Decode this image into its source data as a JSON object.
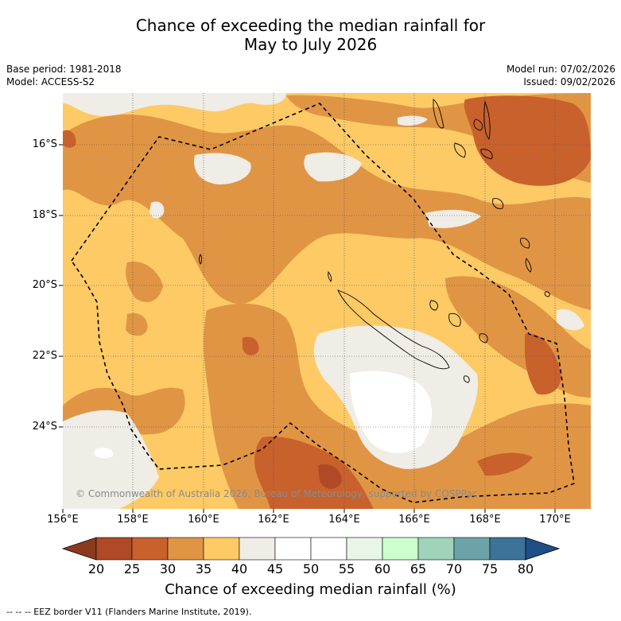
{
  "title": {
    "line1": "Chance of exceeding the median rainfall for",
    "line2": "May to July 2026"
  },
  "meta": {
    "base_period": "Base period: 1981-2018",
    "model": "Model: ACCESS-S2",
    "model_run": "Model run: 07/02/2026",
    "issued": "Issued: 09/02/2026"
  },
  "map": {
    "lat_labels": [
      "16°S",
      "18°S",
      "20°S",
      "22°S",
      "24°S"
    ],
    "lon_labels": [
      "156°E",
      "158°E",
      "160°E",
      "162°E",
      "164°E",
      "166°E",
      "168°E",
      "170°E"
    ],
    "copyright": "© Commonwealth of Australia 2026, Bureau of Meteorology, supported by COSPPac"
  },
  "colorbar": {
    "ticks": [
      "20",
      "25",
      "30",
      "35",
      "40",
      "45",
      "50",
      "55",
      "60",
      "65",
      "70",
      "75",
      "80"
    ],
    "colors": [
      "#b04a26",
      "#c9612d",
      "#e09545",
      "#fdca65",
      "#f0ece6",
      "#ffffff",
      "#ffffff",
      "#e8f6e6",
      "#ccffcc",
      "#9fd3ba",
      "#6ba3a8",
      "#3d7396"
    ],
    "low_color": "#8c3a1e",
    "high_color": "#1e4f86",
    "label": "Chance of exceeding median rainfall (%)"
  },
  "footnote": "--  --  -- EEZ border V11 (Flanders Marine Institute, 2019)."
}
